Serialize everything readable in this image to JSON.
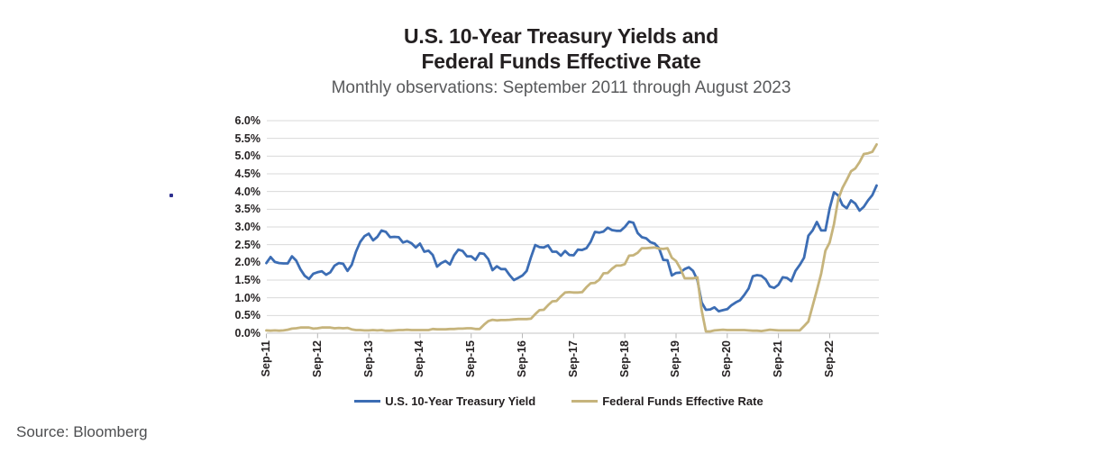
{
  "header": {
    "title_line1": "U.S. 10-Year Treasury Yields and",
    "title_line2": "Federal Funds Effective Rate",
    "subtitle": "Monthly observations: September 2011 through August 2023"
  },
  "footer": {
    "source": "Source: Bloomberg"
  },
  "colors": {
    "treasury_line": "#3c6db4",
    "fedfunds_line": "#c6b47c",
    "gridline": "#dadada",
    "axis_line": "#c6c6c6",
    "tick": "#b5b5b5",
    "text_dark": "#231f20",
    "text_gray": "#58595b"
  },
  "chart_data": {
    "type": "line",
    "title": "U.S. 10-Year Treasury Yields and Federal Funds Effective Rate",
    "subtitle": "Monthly observations: September 2011 through August 2023",
    "x_unit": "month",
    "x_range": [
      "Sep-2011",
      "Aug-2023"
    ],
    "n_points": 144,
    "x_tick_labels": [
      "Sep-11",
      "Sep-12",
      "Sep-13",
      "Sep-14",
      "Sep-15",
      "Sep-16",
      "Sep-17",
      "Sep-18",
      "Sep-19",
      "Sep-20",
      "Sep-21",
      "Sep-22"
    ],
    "y_tick_labels": [
      "0.0%",
      "0.5%",
      "1.0%",
      "1.5%",
      "2.0%",
      "2.5%",
      "3.0%",
      "3.5%",
      "4.0%",
      "4.5%",
      "5.0%",
      "5.5%",
      "6.0%"
    ],
    "ylim": [
      0,
      6
    ],
    "grid": true,
    "legend_position": "bottom-center",
    "series": [
      {
        "name": "U.S. 10-Year Treasury Yield",
        "color": "#3c6db4",
        "values": [
          1.98,
          2.15,
          2.01,
          1.98,
          1.97,
          1.97,
          2.17,
          2.05,
          1.8,
          1.62,
          1.53,
          1.68,
          1.72,
          1.75,
          1.65,
          1.72,
          1.91,
          1.98,
          1.96,
          1.76,
          1.93,
          2.3,
          2.58,
          2.74,
          2.81,
          2.62,
          2.72,
          2.9,
          2.86,
          2.71,
          2.72,
          2.71,
          2.56,
          2.6,
          2.54,
          2.42,
          2.53,
          2.3,
          2.33,
          2.21,
          1.88,
          1.98,
          2.04,
          1.94,
          2.2,
          2.36,
          2.32,
          2.17,
          2.17,
          2.07,
          2.26,
          2.24,
          2.09,
          1.78,
          1.89,
          1.81,
          1.81,
          1.64,
          1.5,
          1.56,
          1.63,
          1.76,
          2.14,
          2.49,
          2.43,
          2.42,
          2.48,
          2.3,
          2.3,
          2.19,
          2.32,
          2.21,
          2.2,
          2.36,
          2.35,
          2.4,
          2.58,
          2.86,
          2.84,
          2.87,
          2.98,
          2.91,
          2.89,
          2.89,
          3.0,
          3.15,
          3.12,
          2.83,
          2.71,
          2.68,
          2.57,
          2.53,
          2.4,
          2.07,
          2.06,
          1.63,
          1.7,
          1.71,
          1.81,
          1.86,
          1.76,
          1.5,
          0.87,
          0.66,
          0.67,
          0.73,
          0.62,
          0.65,
          0.68,
          0.79,
          0.87,
          0.93,
          1.08,
          1.26,
          1.61,
          1.64,
          1.62,
          1.52,
          1.32,
          1.28,
          1.37,
          1.58,
          1.56,
          1.47,
          1.76,
          1.93,
          2.13,
          2.75,
          2.9,
          3.14,
          2.9,
          2.9,
          3.52,
          3.98,
          3.89,
          3.62,
          3.53,
          3.75,
          3.66,
          3.46,
          3.57,
          3.75,
          3.9,
          4.17
        ]
      },
      {
        "name": "Federal Funds Effective Rate",
        "color": "#c6b47c",
        "values": [
          0.08,
          0.07,
          0.08,
          0.07,
          0.08,
          0.1,
          0.13,
          0.14,
          0.16,
          0.16,
          0.16,
          0.13,
          0.14,
          0.16,
          0.16,
          0.16,
          0.14,
          0.15,
          0.14,
          0.15,
          0.11,
          0.09,
          0.09,
          0.08,
          0.08,
          0.09,
          0.08,
          0.09,
          0.07,
          0.07,
          0.08,
          0.09,
          0.09,
          0.1,
          0.09,
          0.09,
          0.09,
          0.09,
          0.09,
          0.12,
          0.11,
          0.11,
          0.11,
          0.12,
          0.12,
          0.13,
          0.13,
          0.14,
          0.14,
          0.12,
          0.12,
          0.24,
          0.34,
          0.38,
          0.36,
          0.37,
          0.37,
          0.38,
          0.39,
          0.4,
          0.4,
          0.4,
          0.41,
          0.54,
          0.65,
          0.66,
          0.79,
          0.9,
          0.91,
          1.04,
          1.15,
          1.16,
          1.15,
          1.15,
          1.16,
          1.3,
          1.41,
          1.42,
          1.51,
          1.69,
          1.7,
          1.82,
          1.91,
          1.91,
          1.95,
          2.19,
          2.2,
          2.27,
          2.4,
          2.4,
          2.41,
          2.42,
          2.39,
          2.38,
          2.4,
          2.13,
          2.04,
          1.83,
          1.55,
          1.55,
          1.55,
          1.58,
          0.65,
          0.05,
          0.05,
          0.08,
          0.09,
          0.1,
          0.09,
          0.09,
          0.09,
          0.09,
          0.09,
          0.08,
          0.07,
          0.07,
          0.06,
          0.08,
          0.1,
          0.09,
          0.08,
          0.08,
          0.08,
          0.08,
          0.08,
          0.08,
          0.2,
          0.33,
          0.77,
          1.21,
          1.68,
          2.33,
          2.56,
          3.08,
          3.78,
          4.1,
          4.33,
          4.57,
          4.65,
          4.83,
          5.06,
          5.08,
          5.12,
          5.33
        ]
      }
    ]
  }
}
